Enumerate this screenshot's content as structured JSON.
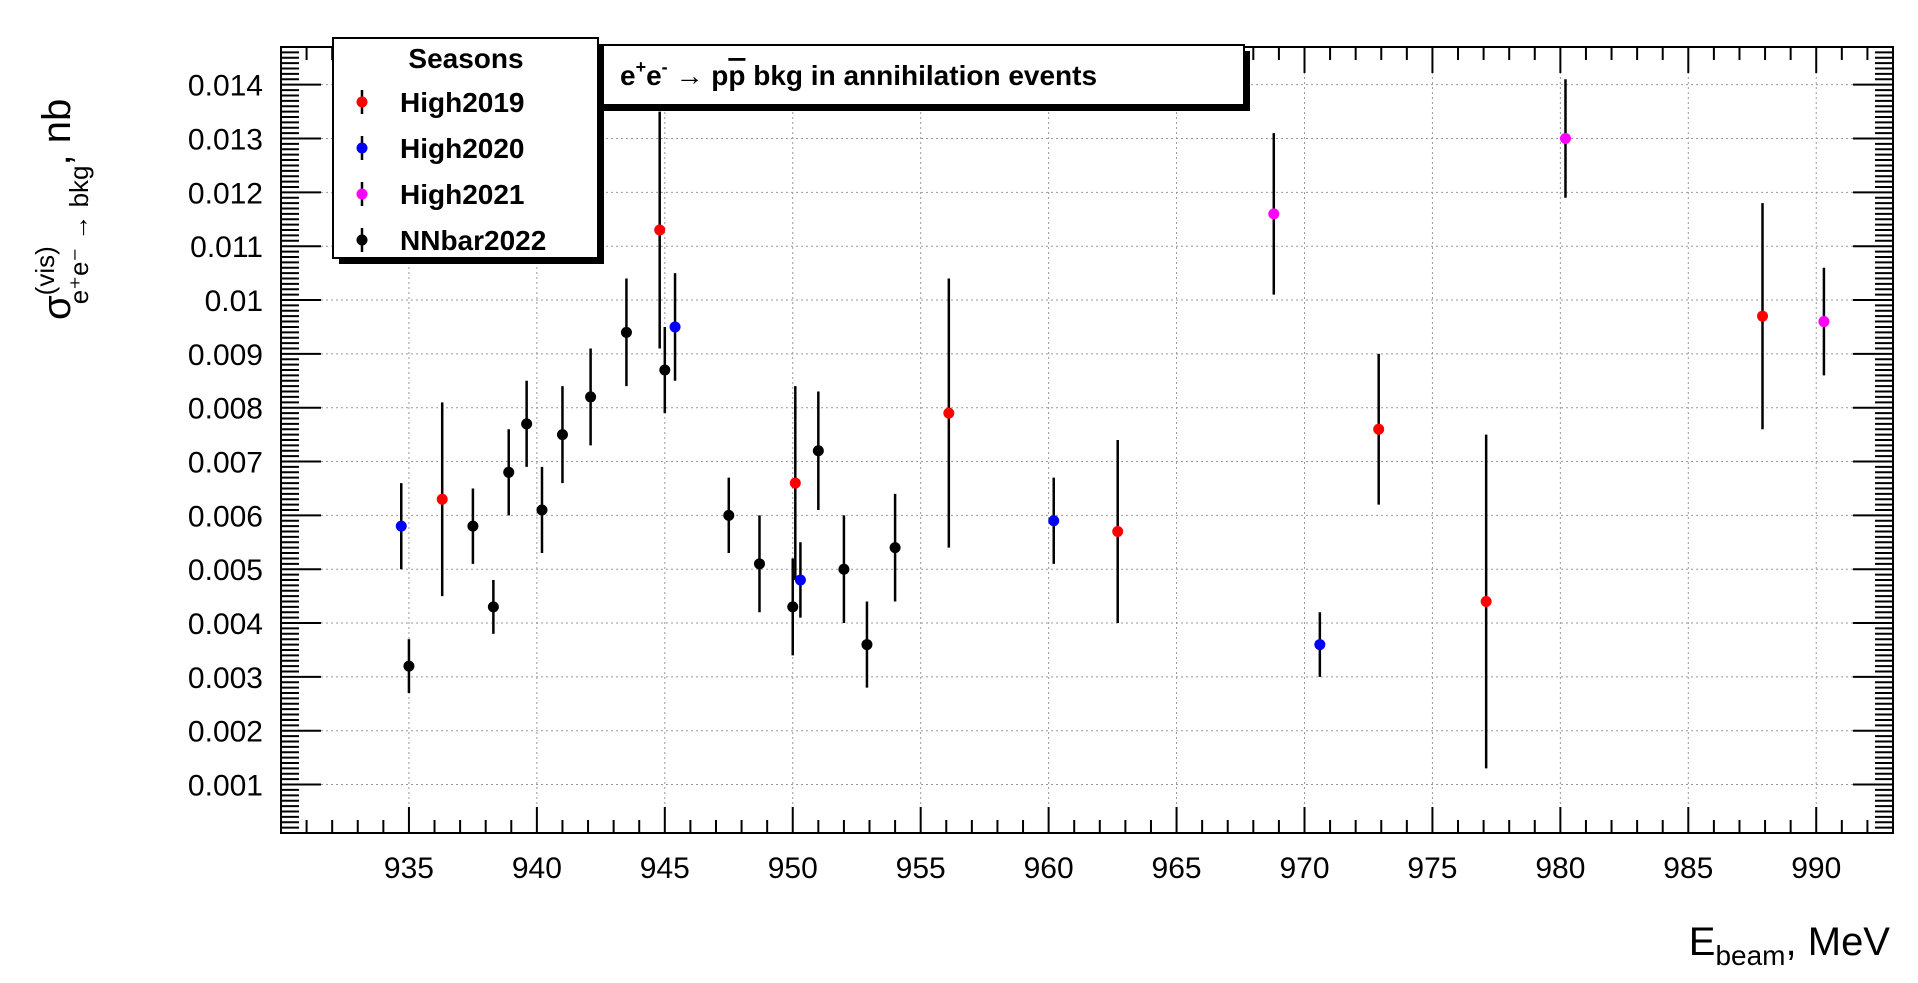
{
  "chart_data": {
    "type": "scatter",
    "title": "",
    "annotation": {
      "parts": [
        "e",
        "+",
        "e",
        "-",
        " → p",
        "p",
        " bkg in annihilation events"
      ]
    },
    "xlabel": {
      "main": "E",
      "sub": "beam",
      "rest": ", MeV"
    },
    "ylabel": {
      "sigma": "σ",
      "sup": "(vis)",
      "sub": "e⁺e⁻ → bkg",
      "rest": ", nb"
    },
    "xlim": [
      930,
      993
    ],
    "ylim": [
      0.0001,
      0.0147
    ],
    "xticks": [
      "935",
      "940",
      "945",
      "950",
      "955",
      "960",
      "965",
      "970",
      "975",
      "980",
      "985",
      "990"
    ],
    "yticks": [
      "0.001",
      "0.002",
      "0.003",
      "0.004",
      "0.005",
      "0.006",
      "0.007",
      "0.008",
      "0.009",
      "0.01",
      "0.011",
      "0.012",
      "0.013",
      "0.014"
    ],
    "grid": true,
    "legend": {
      "title": "Seasons",
      "position": "top-left"
    },
    "series": [
      {
        "name": "High2019",
        "color": "#ff0000",
        "points": [
          {
            "x": 936.3,
            "y": 0.0063,
            "err": 0.0018
          },
          {
            "x": 944.8,
            "y": 0.0113,
            "err": 0.0022
          },
          {
            "x": 950.1,
            "y": 0.0066,
            "err": 0.0018
          },
          {
            "x": 956.1,
            "y": 0.0079,
            "err": 0.0025
          },
          {
            "x": 962.7,
            "y": 0.0057,
            "err": 0.0017
          },
          {
            "x": 972.9,
            "y": 0.0076,
            "err": 0.0014
          },
          {
            "x": 977.1,
            "y": 0.0044,
            "err": 0.0031
          },
          {
            "x": 987.9,
            "y": 0.0097,
            "err": 0.0021
          }
        ]
      },
      {
        "name": "High2020",
        "color": "#0000ff",
        "points": [
          {
            "x": 934.7,
            "y": 0.0058,
            "err": 0.0008
          },
          {
            "x": 945.4,
            "y": 0.0095,
            "err": 0.001
          },
          {
            "x": 950.3,
            "y": 0.0048,
            "err": 0.0007
          },
          {
            "x": 960.2,
            "y": 0.0059,
            "err": 0.0008
          },
          {
            "x": 970.6,
            "y": 0.0036,
            "err": 0.0006
          }
        ]
      },
      {
        "name": "High2021",
        "color": "#ff00ff",
        "points": [
          {
            "x": 968.8,
            "y": 0.0116,
            "err": 0.0015
          },
          {
            "x": 980.2,
            "y": 0.013,
            "err": 0.0011
          },
          {
            "x": 990.3,
            "y": 0.0096,
            "err": 0.001
          }
        ]
      },
      {
        "name": "NNbar2022",
        "color": "#000000",
        "points": [
          {
            "x": 935.0,
            "y": 0.0032,
            "err": 0.0005
          },
          {
            "x": 937.5,
            "y": 0.0058,
            "err": 0.0007
          },
          {
            "x": 938.3,
            "y": 0.0043,
            "err": 0.0005
          },
          {
            "x": 938.9,
            "y": 0.0068,
            "err": 0.0008
          },
          {
            "x": 939.6,
            "y": 0.0077,
            "err": 0.0008
          },
          {
            "x": 940.2,
            "y": 0.0061,
            "err": 0.0008
          },
          {
            "x": 941.0,
            "y": 0.0075,
            "err": 0.0009
          },
          {
            "x": 942.1,
            "y": 0.0082,
            "err": 0.0009
          },
          {
            "x": 943.5,
            "y": 0.0094,
            "err": 0.001
          },
          {
            "x": 945.0,
            "y": 0.0087,
            "err": 0.0008
          },
          {
            "x": 947.5,
            "y": 0.006,
            "err": 0.0007
          },
          {
            "x": 948.7,
            "y": 0.0051,
            "err": 0.0009
          },
          {
            "x": 950.0,
            "y": 0.0043,
            "err": 0.0009
          },
          {
            "x": 951.0,
            "y": 0.0072,
            "err": 0.0011
          },
          {
            "x": 952.0,
            "y": 0.005,
            "err": 0.001
          },
          {
            "x": 952.9,
            "y": 0.0036,
            "err": 0.0008
          },
          {
            "x": 954.0,
            "y": 0.0054,
            "err": 0.001
          }
        ]
      }
    ]
  }
}
